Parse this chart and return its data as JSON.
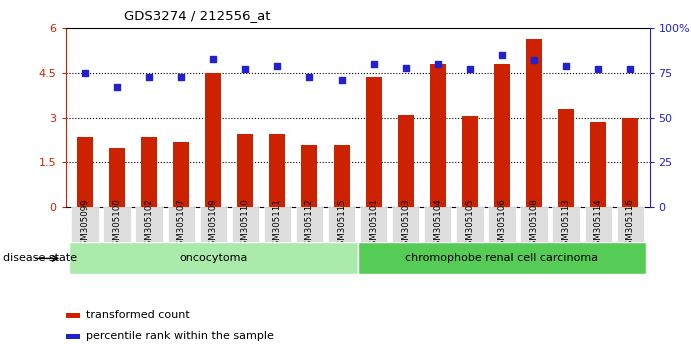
{
  "title": "GDS3274 / 212556_at",
  "samples": [
    "GSM305099",
    "GSM305100",
    "GSM305102",
    "GSM305107",
    "GSM305109",
    "GSM305110",
    "GSM305111",
    "GSM305112",
    "GSM305115",
    "GSM305101",
    "GSM305103",
    "GSM305104",
    "GSM305105",
    "GSM305106",
    "GSM305108",
    "GSM305113",
    "GSM305114",
    "GSM305116"
  ],
  "bar_values": [
    2.35,
    2.0,
    2.35,
    2.2,
    4.5,
    2.45,
    2.45,
    2.1,
    2.1,
    4.35,
    3.1,
    4.8,
    3.05,
    4.8,
    5.65,
    3.3,
    2.85,
    3.0
  ],
  "dot_values": [
    75,
    67,
    73,
    73,
    83,
    77,
    79,
    73,
    71,
    80,
    78,
    80,
    77,
    85,
    82,
    79,
    77,
    77
  ],
  "groups": [
    {
      "label": "oncocytoma",
      "start": 0,
      "end": 9
    },
    {
      "label": "chromophobe renal cell carcinoma",
      "start": 9,
      "end": 18
    }
  ],
  "bar_color": "#CC2200",
  "dot_color": "#2222CC",
  "ylim_left": [
    0,
    6
  ],
  "ylim_right": [
    0,
    100
  ],
  "yticks_left": [
    0,
    1.5,
    3.0,
    4.5,
    6.0
  ],
  "ytick_labels_left": [
    "0",
    "1.5",
    "3",
    "4.5",
    "6"
  ],
  "yticks_right": [
    0,
    25,
    50,
    75,
    100
  ],
  "ytick_labels_right": [
    "0",
    "25",
    "50",
    "75",
    "100%"
  ],
  "hlines": [
    1.5,
    3.0,
    4.5
  ],
  "group_color_onco": "#AAEAAA",
  "group_color_chrom": "#55CC55",
  "disease_state_label": "disease state",
  "legend_bar_label": "transformed count",
  "legend_dot_label": "percentile rank within the sample",
  "tick_bg_color": "#DDDDDD",
  "bar_width": 0.5
}
